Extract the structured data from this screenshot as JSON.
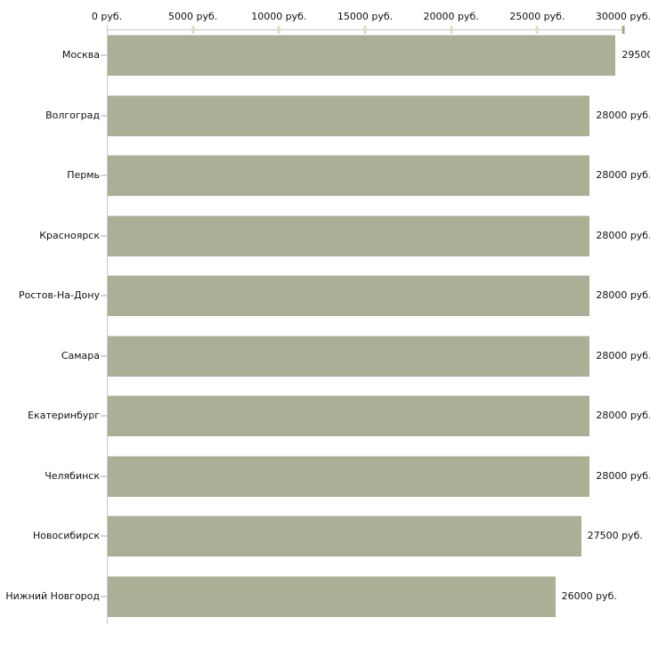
{
  "chart_data": {
    "type": "bar",
    "orientation": "horizontal",
    "title": "",
    "categories": [
      "Москва",
      "Волгоград",
      "Пермь",
      "Красноярск",
      "Ростов-На-Дону",
      "Самара",
      "Екатеринбург",
      "Челябинск",
      "Новосибирск",
      "Нижний Новгород"
    ],
    "values": [
      29500,
      28000,
      28000,
      28000,
      28000,
      28000,
      28000,
      28000,
      27500,
      26000
    ],
    "value_labels": [
      "29500",
      "28000 руб.",
      "28000 руб.",
      "28000 руб.",
      "28000 руб.",
      "28000 руб.",
      "28000 руб.",
      "28000 руб.",
      "27500 руб.",
      "26000 руб."
    ],
    "x_axis": {
      "position": "top",
      "min": 0,
      "max": 30000,
      "tick_values": [
        0,
        5000,
        10000,
        15000,
        20000,
        25000,
        30000
      ],
      "tick_labels": [
        "0 руб.",
        "5000 руб.",
        "10000 руб.",
        "15000 руб.",
        "20000 руб.",
        "25000 руб.",
        "30000 руб."
      ]
    },
    "grid": false,
    "legend": false,
    "colors": {
      "background": "#ffffff",
      "bar_fill": "#a9b096",
      "bar_top_edge": "#d2d5c6",
      "axis_line": "#c6c6c6",
      "tick_mark": "#dcddc5",
      "end_tick_mark": "#a5a68b",
      "category_tick": "#d5d8c6",
      "text": "#111111"
    }
  }
}
